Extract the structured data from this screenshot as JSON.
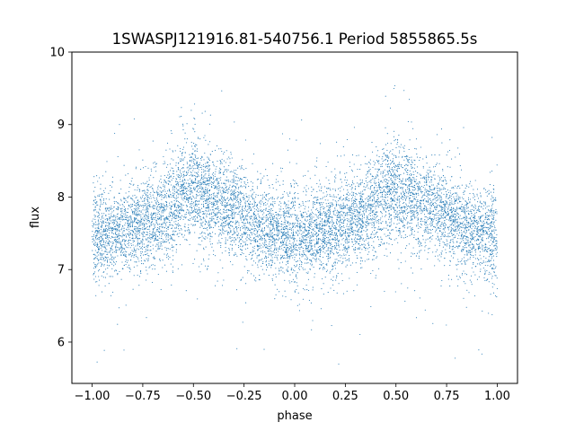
{
  "chart_data": {
    "type": "scatter",
    "title": "1SWASPJ121916.81-540756.1 Period 5855865.5s",
    "xlabel": "phase",
    "ylabel": "flux",
    "xlim": [
      -1.1,
      1.1
    ],
    "ylim": [
      5.43,
      10.0
    ],
    "xticks": [
      -1.0,
      -0.75,
      -0.5,
      -0.25,
      0.0,
      0.25,
      0.5,
      0.75,
      1.0
    ],
    "xtick_labels": [
      "−1.00",
      "−0.75",
      "−0.50",
      "−0.25",
      "0.00",
      "0.25",
      "0.50",
      "0.75",
      "1.00"
    ],
    "yticks": [
      6,
      7,
      8,
      9,
      10
    ],
    "ytick_labels": [
      "6",
      "7",
      "8",
      "9",
      "10"
    ],
    "grid": false,
    "legend": "none",
    "series": [
      {
        "marker_color": "#1f77b4",
        "x_range": [
          -1.0,
          1.0
        ],
        "approx_points": 9000,
        "trend_profile": {
          "phase": [
            0.0,
            0.1,
            0.2,
            0.3,
            0.4,
            0.45,
            0.5,
            0.55,
            0.6,
            0.7,
            0.8,
            0.9,
            1.0
          ],
          "mean_flux": [
            7.45,
            7.5,
            7.6,
            7.7,
            7.85,
            8.05,
            8.1,
            8.0,
            7.9,
            7.85,
            7.65,
            7.5,
            7.45
          ],
          "scatter_sd": [
            0.35,
            0.3,
            0.3,
            0.3,
            0.35,
            0.35,
            0.35,
            0.35,
            0.35,
            0.3,
            0.3,
            0.3,
            0.35
          ]
        },
        "y_extent": [
          5.65,
          9.55
        ]
      }
    ]
  }
}
